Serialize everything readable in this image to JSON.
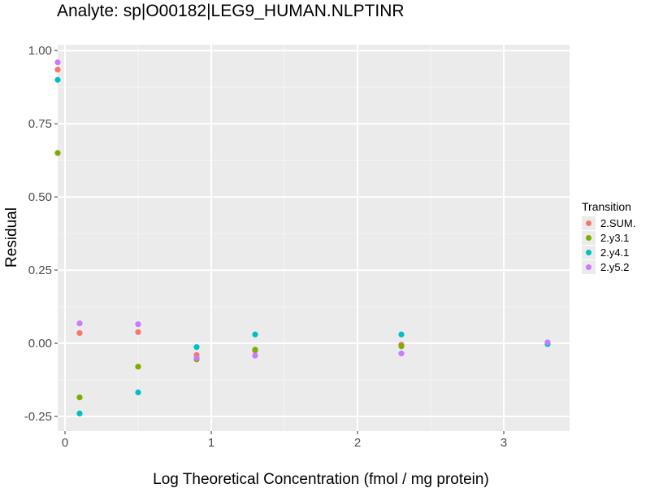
{
  "chart_data": {
    "type": "scatter",
    "title": "Analyte: sp|O00182|LEG9_HUMAN.NLPTINR",
    "xlabel": "Log Theoretical Concentration (fmol / mg protein)",
    "ylabel": "Residual",
    "xlim": [
      -0.05,
      3.45
    ],
    "ylim": [
      -0.3,
      1.02
    ],
    "x_ticks": [
      0,
      1,
      2,
      3
    ],
    "x_tick_labels": [
      "0",
      "1",
      "2",
      "3"
    ],
    "y_ticks": [
      -0.25,
      0,
      0.25,
      0.5,
      0.75,
      1.0
    ],
    "y_tick_labels": [
      "-0.25",
      "0.00",
      "0.25",
      "0.50",
      "0.75",
      "1.00"
    ],
    "grid": true,
    "legend_title": "Transition",
    "legend_position": "right",
    "series": [
      {
        "name": "2.SUM.",
        "color": "#F8766D",
        "x": [
          -0.05,
          0.1,
          0.5,
          0.9,
          1.3,
          2.3,
          3.3
        ],
        "y": [
          0.935,
          0.035,
          0.038,
          -0.04,
          -0.025,
          -0.005,
          0.0
        ]
      },
      {
        "name": "2.y3.1",
        "color": "#7CAE00",
        "x": [
          -0.05,
          0.1,
          0.5,
          0.9,
          1.3,
          2.3,
          3.3
        ],
        "y": [
          0.65,
          -0.185,
          -0.08,
          -0.055,
          -0.022,
          -0.01,
          0.0
        ]
      },
      {
        "name": "2.y4.1",
        "color": "#00BFC4",
        "x": [
          -0.05,
          0.1,
          0.5,
          0.9,
          1.3,
          2.3,
          3.3
        ],
        "y": [
          0.9,
          -0.24,
          -0.168,
          -0.013,
          0.03,
          0.03,
          -0.003
        ]
      },
      {
        "name": "2.y5.2",
        "color": "#C77CFF",
        "x": [
          -0.05,
          0.1,
          0.5,
          0.9,
          1.3,
          2.3,
          3.3
        ],
        "y": [
          0.96,
          0.068,
          0.065,
          -0.05,
          -0.042,
          -0.035,
          0.003
        ]
      }
    ]
  }
}
